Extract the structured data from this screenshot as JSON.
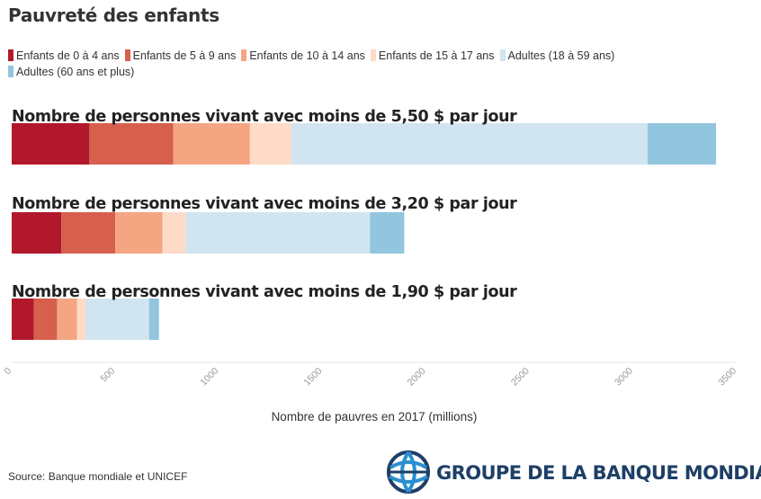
{
  "title": "Pauvreté des enfants",
  "source": "Source: Banque mondiale et UNICEF",
  "logo_text": "GROUPE DE LA BANQUE MONDIALE",
  "chart_data": {
    "type": "bar",
    "orientation": "horizontal",
    "stacked": true,
    "categories": [
      "Nombre de personnes vivant avec moins de 5,50 $ par jour",
      "Nombre de personnes vivant avec moins de 3,20 $ par jour",
      "Nombre de personnes vivant avec moins de 1,90 $ par jour"
    ],
    "series": [
      {
        "name": "Enfants de 0 à 4 ans",
        "color": "#b2182b",
        "values": [
          375,
          240,
          107
        ]
      },
      {
        "name": "Enfants de 5 à 9 ans",
        "color": "#d6604d",
        "values": [
          405,
          260,
          112
        ]
      },
      {
        "name": "Enfants de 10 à 14 ans",
        "color": "#f4a582",
        "values": [
          370,
          228,
          96
        ]
      },
      {
        "name": "Enfants de 15 à 17 ans",
        "color": "#fddbc7",
        "values": [
          200,
          112,
          43
        ]
      },
      {
        "name": "Adultes (18 à 59 ans)",
        "color": "#d1e5f0",
        "values": [
          1720,
          890,
          305
        ]
      },
      {
        "name": "Adultes (60 ans et plus)",
        "color": "#92c5de",
        "values": [
          330,
          165,
          48
        ]
      }
    ],
    "xlabel": "Nombre de pauvres en 2017 (millions)",
    "xlim": [
      0,
      3500
    ],
    "xticks": [
      "0",
      "500",
      "1000",
      "1500",
      "2000",
      "2500",
      "3000",
      "3500"
    ],
    "legend_position": "top-left",
    "grid": false
  }
}
